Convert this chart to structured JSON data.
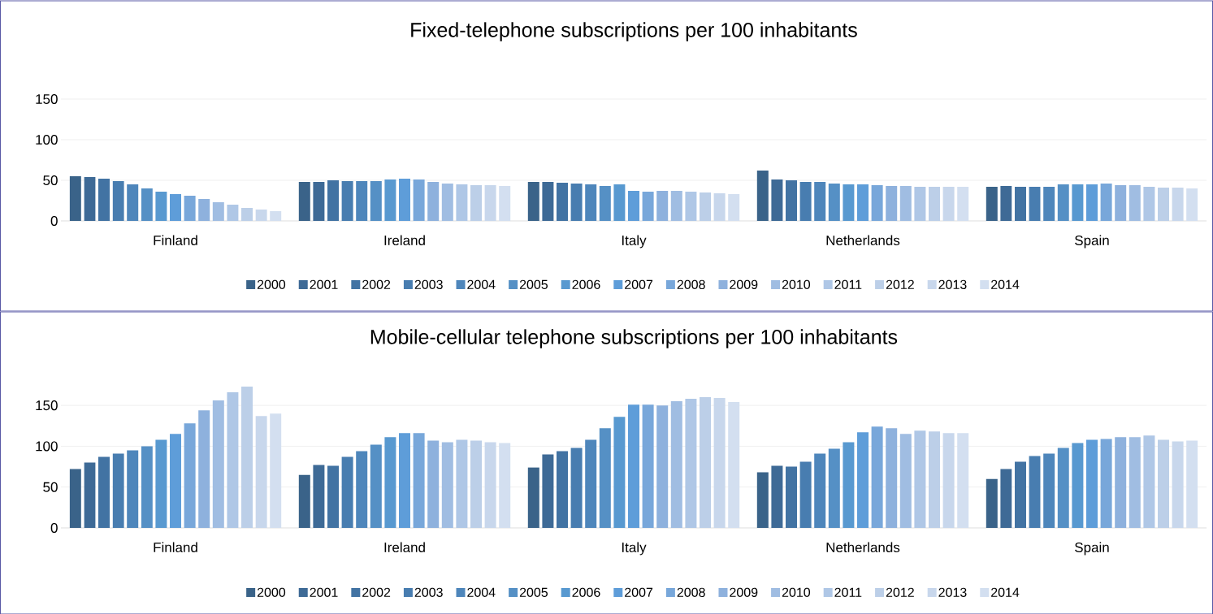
{
  "chart_data": [
    {
      "type": "bar",
      "title": "Fixed-telephone subscriptions per 100 inhabitants",
      "categories": [
        "Finland",
        "Ireland",
        "Italy",
        "Netherlands",
        "Spain"
      ],
      "ylim": [
        0,
        150
      ],
      "yticks": [
        0,
        50,
        100,
        150
      ],
      "grid": "y",
      "legend": "bottom",
      "series": [
        {
          "name": "2000",
          "color": "#3a6389",
          "values": [
            55,
            48,
            48,
            62,
            42
          ]
        },
        {
          "name": "2001",
          "color": "#3e6a96",
          "values": [
            54,
            48,
            48,
            51,
            43
          ]
        },
        {
          "name": "2002",
          "color": "#4273a3",
          "values": [
            52,
            50,
            47,
            50,
            42
          ]
        },
        {
          "name": "2003",
          "color": "#487db0",
          "values": [
            49,
            49,
            46,
            48,
            42
          ]
        },
        {
          "name": "2004",
          "color": "#4e86bb",
          "values": [
            45,
            49,
            45,
            48,
            42
          ]
        },
        {
          "name": "2005",
          "color": "#5590c5",
          "values": [
            40,
            49,
            43,
            46,
            45
          ]
        },
        {
          "name": "2006",
          "color": "#5899d0",
          "values": [
            36,
            51,
            45,
            45,
            45
          ]
        },
        {
          "name": "2007",
          "color": "#5e9dd9",
          "values": [
            33,
            52,
            37,
            45,
            45
          ]
        },
        {
          "name": "2008",
          "color": "#78a7da",
          "values": [
            31,
            51,
            36,
            44,
            46
          ]
        },
        {
          "name": "2009",
          "color": "#8eb1dd",
          "values": [
            27,
            48,
            37,
            43,
            44
          ]
        },
        {
          "name": "2010",
          "color": "#a0bde2",
          "values": [
            23,
            46,
            37,
            43,
            44
          ]
        },
        {
          "name": "2011",
          "color": "#afc7e6",
          "values": [
            20,
            45,
            36,
            42,
            42
          ]
        },
        {
          "name": "2012",
          "color": "#bccfe8",
          "values": [
            16,
            44,
            35,
            42,
            41
          ]
        },
        {
          "name": "2013",
          "color": "#c8d7ec",
          "values": [
            14,
            44,
            34,
            42,
            41
          ]
        },
        {
          "name": "2014",
          "color": "#d3dff0",
          "values": [
            12,
            43,
            33,
            42,
            40
          ]
        }
      ]
    },
    {
      "type": "bar",
      "title": "Mobile-cellular telephone subscriptions per 100 inhabitants",
      "categories": [
        "Finland",
        "Ireland",
        "Italy",
        "Netherlands",
        "Spain"
      ],
      "ylim": [
        0,
        175
      ],
      "yticks": [
        0,
        50,
        100,
        150
      ],
      "grid": "y",
      "legend": "bottom",
      "series": [
        {
          "name": "2000",
          "color": "#3a6389",
          "values": [
            72,
            65,
            74,
            68,
            60
          ]
        },
        {
          "name": "2001",
          "color": "#3e6a96",
          "values": [
            80,
            77,
            90,
            76,
            72
          ]
        },
        {
          "name": "2002",
          "color": "#4273a3",
          "values": [
            87,
            76,
            94,
            75,
            81
          ]
        },
        {
          "name": "2003",
          "color": "#487db0",
          "values": [
            91,
            87,
            98,
            81,
            88
          ]
        },
        {
          "name": "2004",
          "color": "#4e86bb",
          "values": [
            95,
            94,
            108,
            91,
            91
          ]
        },
        {
          "name": "2005",
          "color": "#5590c5",
          "values": [
            100,
            102,
            122,
            97,
            98
          ]
        },
        {
          "name": "2006",
          "color": "#5899d0",
          "values": [
            108,
            111,
            136,
            105,
            104
          ]
        },
        {
          "name": "2007",
          "color": "#5e9dd9",
          "values": [
            115,
            116,
            151,
            117,
            108
          ]
        },
        {
          "name": "2008",
          "color": "#78a7da",
          "values": [
            128,
            116,
            151,
            124,
            109
          ]
        },
        {
          "name": "2009",
          "color": "#8eb1dd",
          "values": [
            144,
            107,
            150,
            122,
            111
          ]
        },
        {
          "name": "2010",
          "color": "#a0bde2",
          "values": [
            156,
            105,
            155,
            115,
            111
          ]
        },
        {
          "name": "2011",
          "color": "#afc7e6",
          "values": [
            166,
            108,
            158,
            119,
            113
          ]
        },
        {
          "name": "2012",
          "color": "#bccfe8",
          "values": [
            173,
            107,
            160,
            118,
            108
          ]
        },
        {
          "name": "2013",
          "color": "#c8d7ec",
          "values": [
            137,
            105,
            159,
            116,
            106
          ]
        },
        {
          "name": "2014",
          "color": "#d3dff0",
          "values": [
            140,
            104,
            154,
            116,
            107
          ]
        }
      ]
    }
  ]
}
